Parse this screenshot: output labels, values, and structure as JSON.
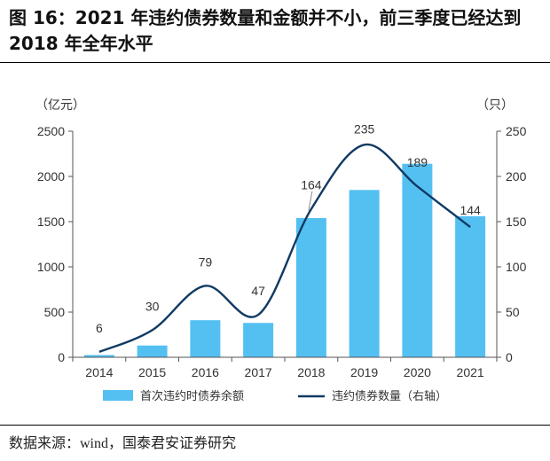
{
  "figure": {
    "title": "图 16：2021 年违约债券数量和金额并不小，前三季度已经达到 2018 年全年水平",
    "source": "数据来源：wind，国泰君安证券研究"
  },
  "colors": {
    "bar": "#54c0f2",
    "line": "#103a63",
    "axis": "#555555",
    "text": "#333333"
  },
  "chart_data": {
    "type": "bar",
    "title": "",
    "categories": [
      "2014",
      "2015",
      "2016",
      "2017",
      "2018",
      "2019",
      "2020",
      "2021"
    ],
    "series": [
      {
        "name": "首次违约时债券余额",
        "type": "bar",
        "axis": "left",
        "values": [
          25,
          130,
          410,
          380,
          1540,
          1850,
          2140,
          1560
        ]
      },
      {
        "name": "违约债券数量（右轴）",
        "type": "line",
        "axis": "right",
        "values": [
          6,
          30,
          79,
          47,
          164,
          235,
          189,
          144
        ]
      }
    ],
    "line_labels": [
      "6",
      "30",
      "79",
      "47",
      "164",
      "235",
      "189",
      "144"
    ],
    "y_left": {
      "label": "（亿元）",
      "ylim": [
        0,
        2500
      ],
      "ticks": [
        "0",
        "500",
        "1000",
        "1500",
        "2000",
        "2500"
      ]
    },
    "y_right": {
      "label": "（只）",
      "ylim": [
        0,
        250
      ],
      "ticks": [
        "0",
        "50",
        "100",
        "150",
        "200",
        "250"
      ]
    },
    "grid": false,
    "legend_position": "bottom"
  }
}
